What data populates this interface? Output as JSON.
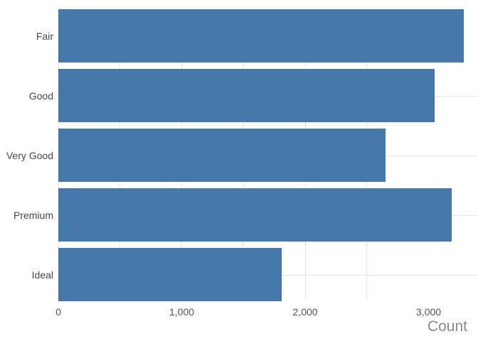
{
  "chart_data": {
    "type": "bar",
    "orientation": "horizontal",
    "title": "",
    "xlabel": "Count",
    "ylabel": "",
    "categories": [
      "Fair",
      "Good",
      "Very Good",
      "Premium",
      "Ideal"
    ],
    "values": [
      3285,
      3050,
      2650,
      3185,
      1810
    ],
    "xlim": [
      0,
      3400
    ],
    "x_ticks": [
      {
        "value": 0,
        "label": "0"
      },
      {
        "value": 1000,
        "label": "1,000"
      },
      {
        "value": 2000,
        "label": "2,000"
      },
      {
        "value": 3000,
        "label": "3,000"
      }
    ],
    "grid_step": 500,
    "grid": true,
    "legend": false,
    "colors": {
      "bar": "#4678aa",
      "grid": "#e8e8e8",
      "category_label": "#474747",
      "tick_label": "#555555",
      "axis_title": "#8a8a8a",
      "background": "#ffffff"
    }
  }
}
